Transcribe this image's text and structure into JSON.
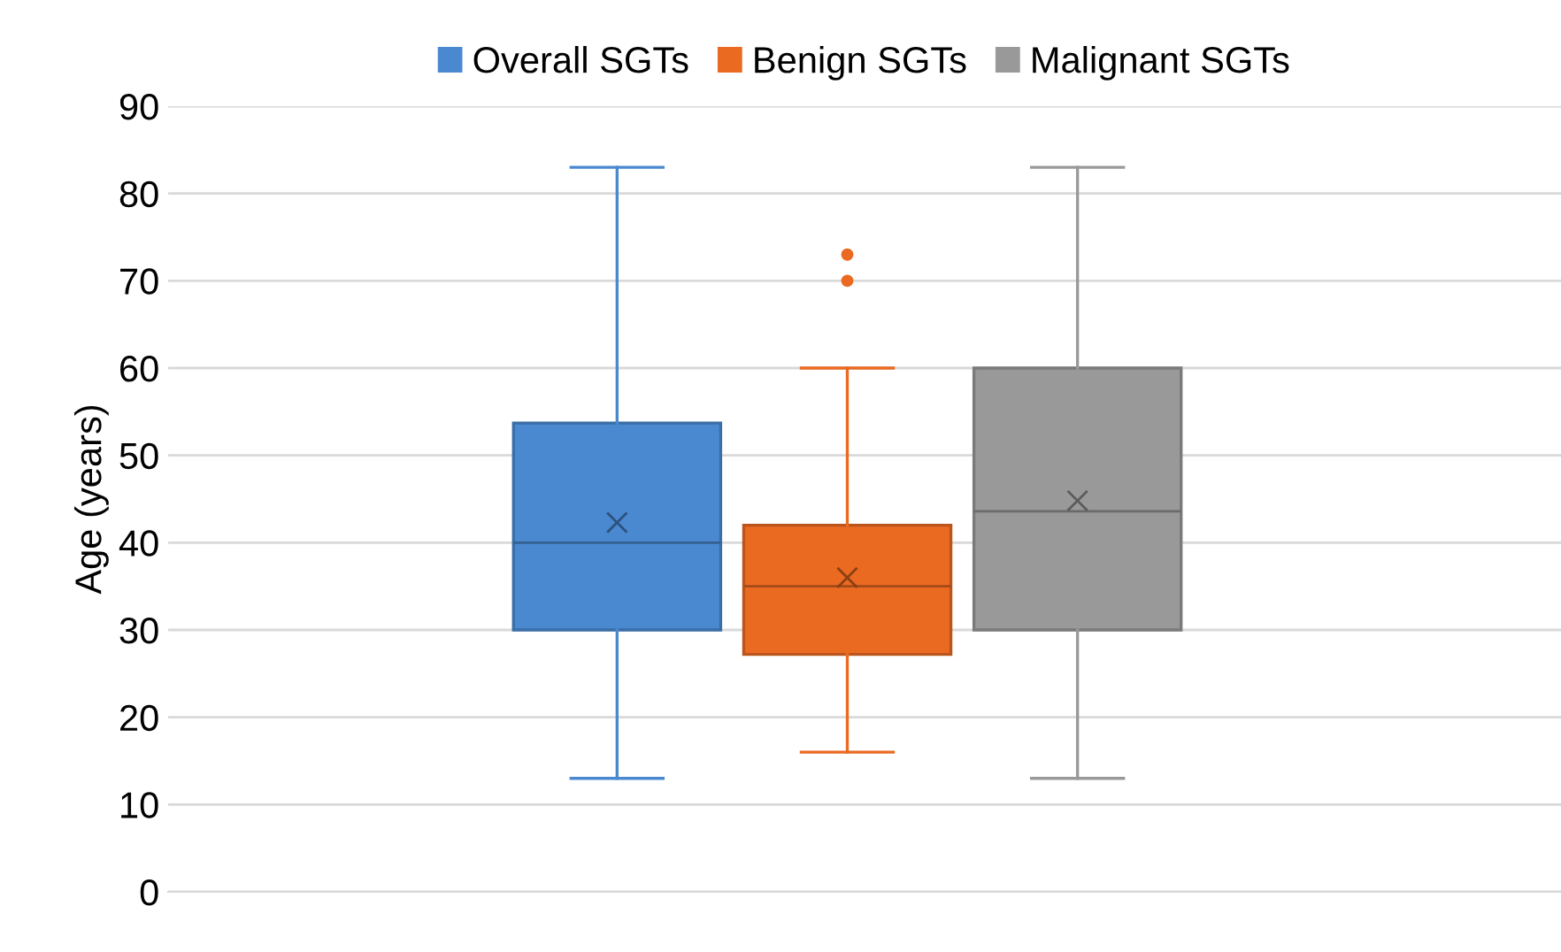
{
  "chart_data": {
    "type": "box",
    "ylabel": "Age (years)",
    "categories": [
      null
    ],
    "series": [
      {
        "name": "Overall SGTs",
        "color": "#4a89d0",
        "boxes": [
          {
            "low": 13,
            "q1": 30,
            "median": 40,
            "q3": 53.7,
            "high": 83,
            "mean": 42.3
          }
        ]
      },
      {
        "name": "Benign SGTs",
        "color": "#ea6a22",
        "boxes": [
          {
            "low": 16,
            "q1": 27.2,
            "median": 35,
            "q3": 42,
            "high": 60,
            "mean": 36,
            "outliers": [
              70,
              73
            ]
          }
        ]
      },
      {
        "name": "Malignant SGTs",
        "color": "#999999",
        "boxes": [
          {
            "low": 13,
            "q1": 30,
            "median": 43.6,
            "q3": 60,
            "high": 83,
            "mean": 44.8
          }
        ]
      }
    ],
    "ylim": [
      0,
      90
    ],
    "yticks": [
      0,
      10,
      20,
      30,
      40,
      50,
      60,
      70,
      80,
      90
    ],
    "grid": "y",
    "legend": "top",
    "tick_labels": "y"
  }
}
